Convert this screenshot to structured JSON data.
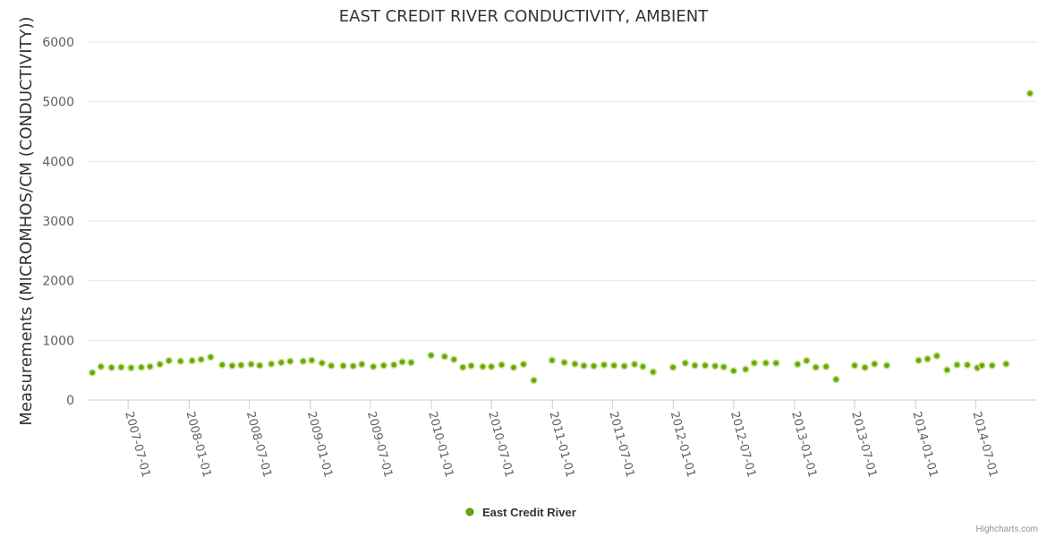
{
  "chart_data": {
    "type": "scatter",
    "title": "EAST CREDIT RIVER CONDUCTIVITY, AMBIENT",
    "xlabel": "",
    "ylabel": "Measurements (MICROMHOS/CM (CONDUCTIVITY))",
    "ylim": [
      0,
      6000
    ],
    "yticks": [
      "0",
      "1000",
      "2000",
      "3000",
      "4000",
      "5000",
      "6000"
    ],
    "xlim": [
      "2007-03-01",
      "2014-12-31"
    ],
    "xticks": [
      "2007-07-01",
      "2008-01-01",
      "2008-07-01",
      "2009-01-01",
      "2009-07-01",
      "2010-01-01",
      "2010-07-01",
      "2011-01-01",
      "2011-07-01",
      "2012-01-01",
      "2012-07-01",
      "2013-01-01",
      "2013-07-01",
      "2014-01-01",
      "2014-07-01"
    ],
    "grid": true,
    "legend": "bottom-center",
    "series": [
      {
        "name": "East Credit River",
        "color": "#66aa00",
        "points": [
          [
            "2007-03-15",
            460
          ],
          [
            "2007-04-10",
            560
          ],
          [
            "2007-05-12",
            545
          ],
          [
            "2007-06-10",
            550
          ],
          [
            "2007-07-10",
            540
          ],
          [
            "2007-08-10",
            550
          ],
          [
            "2007-09-05",
            560
          ],
          [
            "2007-10-05",
            600
          ],
          [
            "2007-11-01",
            660
          ],
          [
            "2007-12-06",
            650
          ],
          [
            "2008-01-10",
            660
          ],
          [
            "2008-02-06",
            680
          ],
          [
            "2008-03-06",
            720
          ],
          [
            "2008-04-10",
            590
          ],
          [
            "2008-05-10",
            575
          ],
          [
            "2008-06-06",
            585
          ],
          [
            "2008-07-06",
            600
          ],
          [
            "2008-08-01",
            580
          ],
          [
            "2008-09-05",
            605
          ],
          [
            "2008-10-05",
            630
          ],
          [
            "2008-11-01",
            650
          ],
          [
            "2008-12-10",
            650
          ],
          [
            "2009-01-05",
            665
          ],
          [
            "2009-02-05",
            620
          ],
          [
            "2009-03-05",
            575
          ],
          [
            "2009-04-10",
            575
          ],
          [
            "2009-05-10",
            570
          ],
          [
            "2009-06-05",
            600
          ],
          [
            "2009-07-10",
            560
          ],
          [
            "2009-08-10",
            580
          ],
          [
            "2009-09-10",
            590
          ],
          [
            "2009-10-05",
            640
          ],
          [
            "2009-11-01",
            630
          ],
          [
            "2009-12-31",
            750
          ],
          [
            "2010-02-10",
            730
          ],
          [
            "2010-03-10",
            680
          ],
          [
            "2010-04-06",
            550
          ],
          [
            "2010-05-01",
            575
          ],
          [
            "2010-06-05",
            560
          ],
          [
            "2010-07-01",
            560
          ],
          [
            "2010-08-01",
            590
          ],
          [
            "2010-09-06",
            545
          ],
          [
            "2010-10-06",
            600
          ],
          [
            "2010-11-06",
            330
          ],
          [
            "2010-12-31",
            665
          ],
          [
            "2011-02-06",
            630
          ],
          [
            "2011-03-10",
            605
          ],
          [
            "2011-04-06",
            575
          ],
          [
            "2011-05-06",
            570
          ],
          [
            "2011-06-06",
            590
          ],
          [
            "2011-07-06",
            580
          ],
          [
            "2011-08-06",
            570
          ],
          [
            "2011-09-06",
            600
          ],
          [
            "2011-10-01",
            560
          ],
          [
            "2011-11-01",
            470
          ],
          [
            "2011-12-31",
            550
          ],
          [
            "2012-02-06",
            620
          ],
          [
            "2012-03-06",
            580
          ],
          [
            "2012-04-06",
            580
          ],
          [
            "2012-05-06",
            570
          ],
          [
            "2012-06-01",
            555
          ],
          [
            "2012-07-01",
            490
          ],
          [
            "2012-08-06",
            515
          ],
          [
            "2012-09-01",
            620
          ],
          [
            "2012-10-06",
            620
          ],
          [
            "2012-11-06",
            620
          ],
          [
            "2013-01-10",
            600
          ],
          [
            "2013-02-06",
            660
          ],
          [
            "2013-03-06",
            550
          ],
          [
            "2013-04-06",
            560
          ],
          [
            "2013-05-06",
            345
          ],
          [
            "2013-07-01",
            580
          ],
          [
            "2013-08-01",
            545
          ],
          [
            "2013-08-30",
            605
          ],
          [
            "2013-10-06",
            580
          ],
          [
            "2014-01-10",
            665
          ],
          [
            "2014-02-06",
            690
          ],
          [
            "2014-03-06",
            740
          ],
          [
            "2014-04-06",
            505
          ],
          [
            "2014-05-06",
            590
          ],
          [
            "2014-06-06",
            590
          ],
          [
            "2014-07-06",
            540
          ],
          [
            "2014-07-20",
            580
          ],
          [
            "2014-08-20",
            580
          ],
          [
            "2014-10-01",
            605
          ],
          [
            "2014-12-12",
            5140
          ]
        ]
      }
    ]
  },
  "legend": {
    "label": "East Credit River"
  },
  "credits": {
    "text": "Highcharts.com"
  }
}
